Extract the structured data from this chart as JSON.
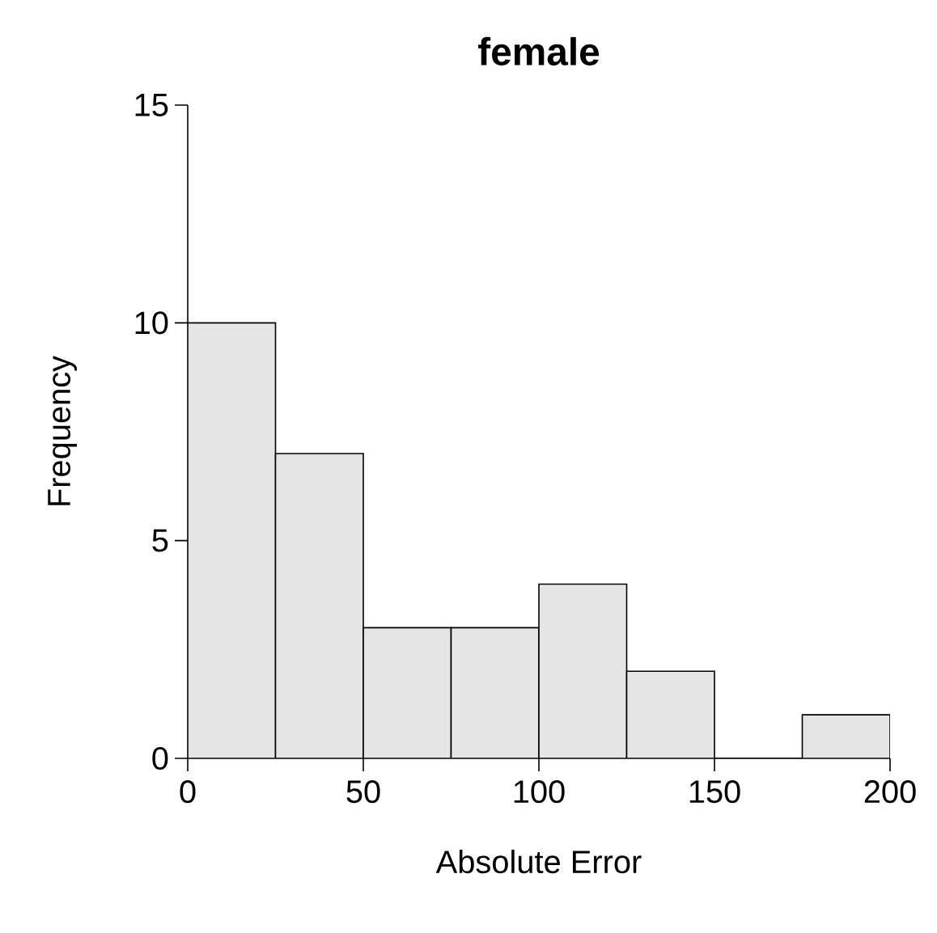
{
  "chart_data": {
    "type": "histogram",
    "title": "female",
    "xlabel": "Absolute Error",
    "ylabel": "Frequency",
    "bins": [
      0,
      25,
      50,
      75,
      100,
      125,
      150,
      175,
      200
    ],
    "values": [
      10,
      7,
      3,
      3,
      4,
      2,
      0,
      1
    ],
    "color": "#e5e5e5",
    "xlim": [
      0,
      200
    ],
    "ylim": [
      0,
      15
    ],
    "xticks": [
      0,
      50,
      100,
      150,
      200
    ],
    "yticks": [
      0,
      5,
      10,
      15
    ]
  }
}
